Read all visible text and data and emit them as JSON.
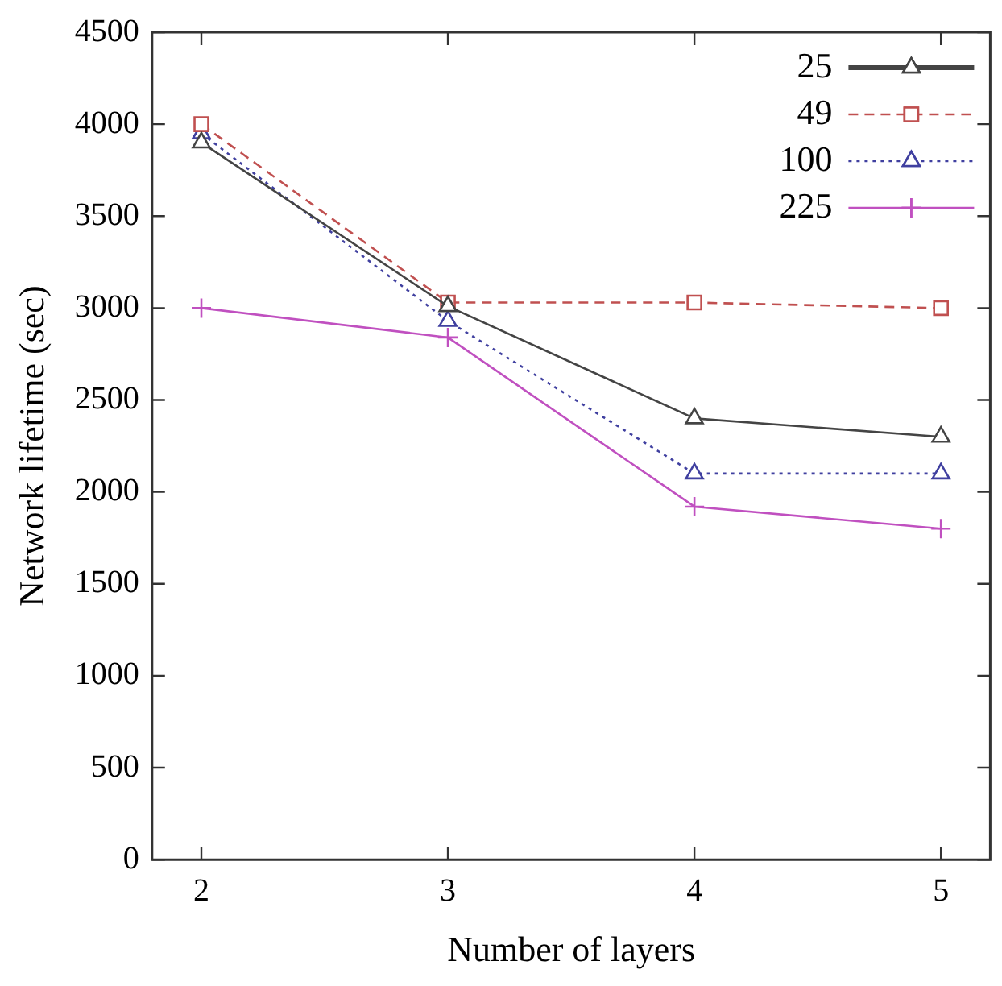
{
  "chart_data": {
    "type": "line",
    "xlabel": "Number of layers",
    "ylabel": "Network lifetime (sec)",
    "x": [
      2,
      3,
      4,
      5
    ],
    "xlim": [
      1.8,
      5.2
    ],
    "xticks": [
      2,
      3,
      4,
      5
    ],
    "ylim": [
      0,
      4500
    ],
    "yticks": [
      0,
      500,
      1000,
      1500,
      2000,
      2500,
      3000,
      3500,
      4000,
      4500
    ],
    "grid": false,
    "legend": "top right",
    "series": [
      {
        "name": "25",
        "color": "#444444",
        "marker": "triangle",
        "line_style": "solid",
        "values": [
          3900,
          3010,
          2400,
          2300
        ]
      },
      {
        "name": "49",
        "color": "#c05050",
        "marker": "square",
        "line_style": "dashed",
        "values": [
          4000,
          3030,
          3030,
          3000
        ]
      },
      {
        "name": "100",
        "color": "#4040a0",
        "marker": "triangle",
        "line_style": "dotted",
        "values": [
          3950,
          2930,
          2100,
          2100
        ]
      },
      {
        "name": "225",
        "color": "#c050c0",
        "marker": "cross",
        "line_style": "solid",
        "values": [
          3000,
          2840,
          1920,
          1800
        ]
      }
    ]
  }
}
